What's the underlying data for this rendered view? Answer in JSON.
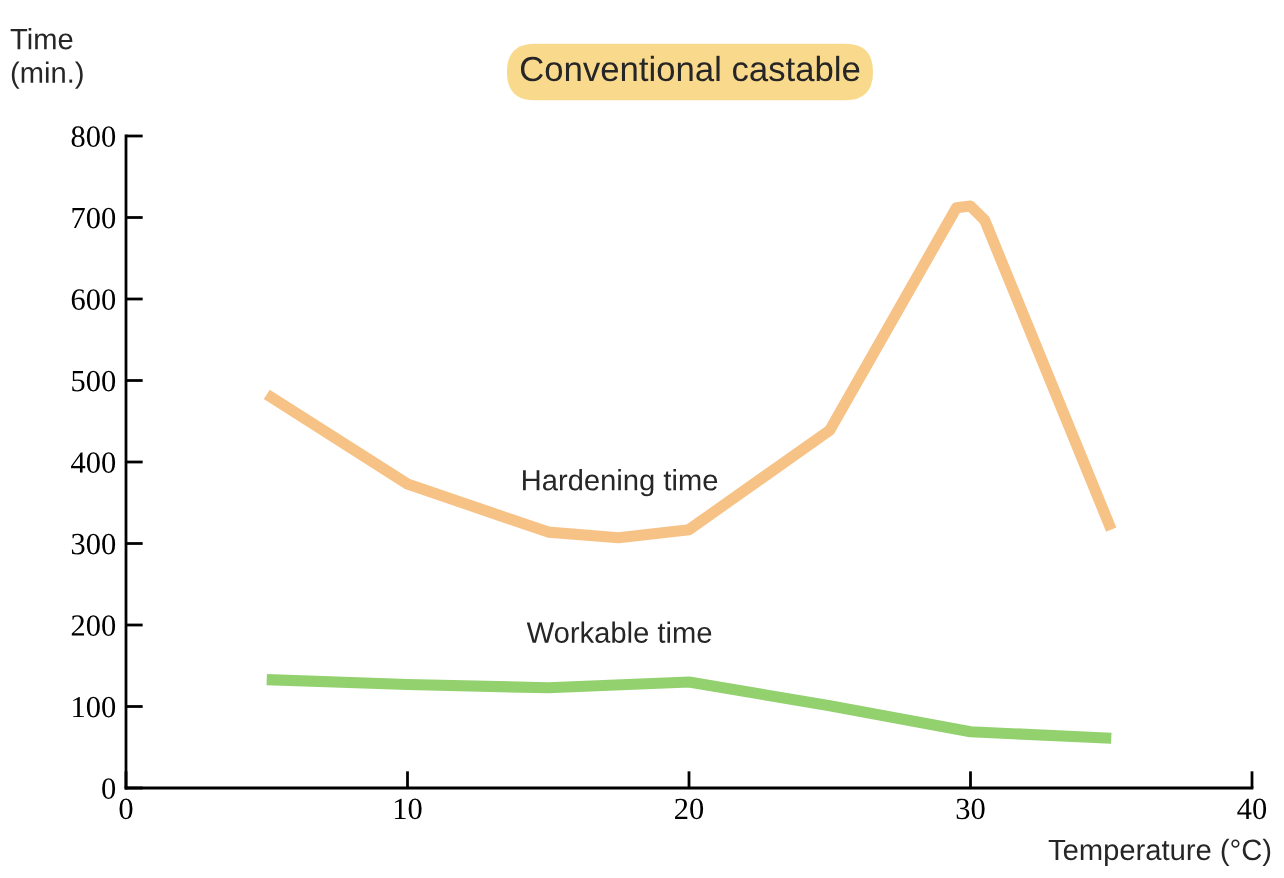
{
  "chart_data": {
    "type": "line",
    "title": "Conventional castable",
    "xlabel": "Temperature (°C)",
    "ylabel": "Time\n(min.)",
    "xlim": [
      0,
      40
    ],
    "xticks": [
      0,
      10,
      20,
      30,
      40
    ],
    "ylim": [
      0,
      800
    ],
    "yticks": [
      0,
      100,
      200,
      300,
      400,
      500,
      600,
      700,
      800
    ],
    "grid": false,
    "legend": false,
    "marker": "none",
    "line_style": "solid",
    "series": [
      {
        "name": "Hardening time",
        "color": "#f7c285",
        "x": [
          5,
          10,
          15,
          17.5,
          20,
          25,
          29.5,
          30,
          30.5,
          35
        ],
        "values": [
          483,
          373,
          314,
          307,
          317,
          439,
          712,
          714,
          697,
          317
        ]
      },
      {
        "name": "Workable time",
        "color": "#93d16f",
        "x": [
          5,
          10,
          15,
          20,
          25,
          30,
          35
        ],
        "values": [
          133,
          127,
          123,
          130,
          101,
          69,
          61
        ]
      }
    ]
  }
}
